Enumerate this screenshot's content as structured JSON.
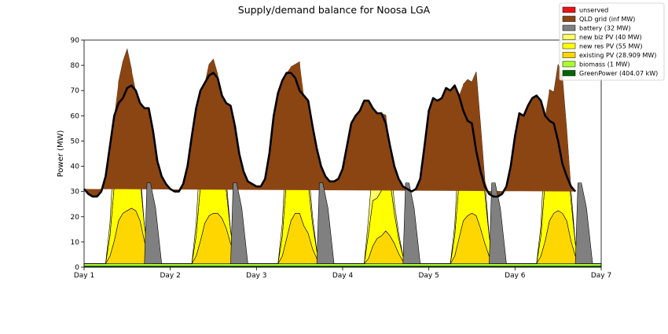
{
  "chart_data": {
    "type": "area",
    "title": "Supply/demand balance for Noosa LGA",
    "xlabel": "",
    "ylabel": "Power (MW)",
    "ylim": [
      0,
      90
    ],
    "yticks": [
      0,
      10,
      20,
      30,
      40,
      50,
      60,
      70,
      80,
      90
    ],
    "xlim": [
      1,
      7
    ],
    "xticks": [
      1,
      2,
      3,
      4,
      5,
      6,
      7
    ],
    "xtick_labels": [
      "Day 1",
      "Day 2",
      "Day 3",
      "Day 4",
      "Day 5",
      "Day 6",
      "Day 7"
    ],
    "grid": false,
    "legend_position": "top-right",
    "stack_order": [
      "GreenPower (404.07 kW)",
      "biomass (1 MW)",
      "existing PV (28.909 MW)",
      "new res PV (55 MW)",
      "new biz PV (40 MW)",
      "battery (32 MW)",
      "QLD grid (inf MW)",
      "unserved"
    ],
    "legend": [
      {
        "name": "unserved",
        "color": "#e8141b"
      },
      {
        "name": "QLD grid (inf MW)",
        "color": "#8b4513"
      },
      {
        "name": "battery (32 MW)",
        "color": "#808080"
      },
      {
        "name": "new biz PV (40 MW)",
        "color": "#ffff66"
      },
      {
        "name": "new res PV (55 MW)",
        "color": "#ffff00"
      },
      {
        "name": "existing PV (28.909 MW)",
        "color": "#ffd700"
      },
      {
        "name": "biomass (1 MW)",
        "color": "#adff2f"
      },
      {
        "name": "GreenPower (404.07 kW)",
        "color": "#006400"
      }
    ],
    "x": [
      1.0,
      1.05,
      1.1,
      1.15,
      1.2,
      1.25,
      1.3,
      1.35,
      1.4,
      1.45,
      1.5,
      1.55,
      1.6,
      1.65,
      1.7,
      1.75,
      1.8,
      1.85,
      1.9,
      1.95,
      2.0,
      2.05,
      2.1,
      2.15,
      2.2,
      2.25,
      2.3,
      2.35,
      2.4,
      2.45,
      2.5,
      2.55,
      2.6,
      2.65,
      2.7,
      2.75,
      2.8,
      2.85,
      2.9,
      2.95,
      3.0,
      3.05,
      3.1,
      3.15,
      3.2,
      3.25,
      3.3,
      3.35,
      3.4,
      3.45,
      3.5,
      3.55,
      3.6,
      3.65,
      3.7,
      3.75,
      3.8,
      3.85,
      3.9,
      3.95,
      4.0,
      4.05,
      4.1,
      4.15,
      4.2,
      4.25,
      4.3,
      4.35,
      4.4,
      4.45,
      4.5,
      4.55,
      4.6,
      4.65,
      4.7,
      4.75,
      4.8,
      4.85,
      4.9,
      4.95,
      5.0,
      5.05,
      5.1,
      5.15,
      5.2,
      5.25,
      5.3,
      5.35,
      5.4,
      5.45,
      5.5,
      5.55,
      5.6,
      5.65,
      5.7,
      5.75,
      5.8,
      5.85,
      5.9,
      5.95,
      6.0,
      6.05,
      6.1,
      6.15,
      6.2,
      6.25,
      6.3,
      6.35,
      6.4,
      6.45,
      6.5,
      6.55,
      6.6,
      6.65,
      6.7,
      6.75,
      6.8,
      6.85,
      6.9,
      6.95,
      7.0
    ],
    "demand": [
      31.0,
      29.0,
      28.0,
      28.0,
      30.0,
      36.0,
      48.0,
      60.0,
      65.0,
      67.0,
      71.0,
      72.0,
      70.0,
      65.0,
      63.0,
      63.0,
      54.0,
      42.0,
      36.0,
      33.0,
      31.0,
      30.0,
      30.0,
      33.0,
      40.0,
      52.0,
      63.0,
      70.0,
      73.0,
      76.0,
      77.0,
      75.0,
      68.0,
      65.0,
      64.0,
      56.0,
      45.0,
      38.0,
      34.0,
      33.0,
      32.0,
      32.0,
      35.0,
      45.0,
      60.0,
      69.0,
      74.0,
      77.0,
      77.0,
      75.0,
      70.0,
      68.0,
      66.0,
      56.0,
      47.0,
      40.0,
      36.0,
      34.0,
      34.0,
      35.0,
      39.0,
      48.0,
      57.0,
      60.0,
      62.0,
      66.0,
      66.0,
      63.0,
      61.0,
      61.0,
      57.0,
      48.0,
      40.0,
      35.0,
      32.0,
      31.0,
      30.0,
      31.0,
      35.0,
      48.0,
      62.0,
      67.0,
      66.0,
      67.0,
      71.0,
      70.0,
      72.0,
      68.0,
      62.0,
      58.0,
      57.0,
      46.0,
      38.0,
      32.0,
      29.0,
      28.0,
      28.0,
      29.0,
      32.0,
      40.0,
      52.0,
      61.0,
      60.0,
      64.0,
      67.0,
      68.0,
      66.0,
      60.0,
      58.0,
      57.0,
      50.0,
      41.0,
      36.0,
      32.0,
      30.0
    ],
    "series": [
      {
        "name": "GreenPower (404.07 kW)",
        "values": [
          0.4,
          0.4,
          0.4,
          0.4,
          0.4,
          0.4,
          0.4,
          0.4,
          0.4,
          0.4,
          0.4,
          0.4,
          0.4,
          0.4,
          0.4,
          0.4,
          0.4,
          0.4,
          0.4,
          0.4,
          0.4,
          0.4,
          0.4,
          0.4,
          0.4,
          0.4,
          0.4,
          0.4,
          0.4,
          0.4,
          0.4,
          0.4,
          0.4,
          0.4,
          0.4,
          0.4,
          0.4,
          0.4,
          0.4,
          0.4,
          0.4,
          0.4,
          0.4,
          0.4,
          0.4,
          0.4,
          0.4,
          0.4,
          0.4,
          0.4,
          0.4,
          0.4,
          0.4,
          0.4,
          0.4,
          0.4,
          0.4,
          0.4,
          0.4,
          0.4,
          0.4,
          0.4,
          0.4,
          0.4,
          0.4,
          0.4,
          0.4,
          0.4,
          0.4,
          0.4,
          0.4,
          0.4,
          0.4,
          0.4,
          0.4,
          0.4,
          0.4,
          0.4,
          0.4,
          0.4,
          0.4,
          0.4,
          0.4,
          0.4,
          0.4,
          0.4,
          0.4,
          0.4,
          0.4,
          0.4,
          0.4,
          0.4,
          0.4,
          0.4,
          0.4,
          0.4,
          0.4,
          0.4,
          0.4,
          0.4,
          0.4,
          0.4,
          0.4,
          0.4,
          0.4,
          0.4,
          0.4,
          0.4,
          0.4,
          0.4,
          0.4,
          0.4,
          0.4,
          0.4,
          0.4,
          0.4,
          0.4,
          0.4,
          0.4,
          0.4,
          0.4
        ]
      },
      {
        "name": "biomass (1 MW)",
        "values": [
          1.0,
          1.0,
          1.0,
          1.0,
          1.0,
          1.0,
          1.0,
          1.0,
          1.0,
          1.0,
          1.0,
          1.0,
          1.0,
          1.0,
          1.0,
          1.0,
          1.0,
          1.0,
          1.0,
          1.0,
          1.0,
          1.0,
          1.0,
          1.0,
          1.0,
          1.0,
          1.0,
          1.0,
          1.0,
          1.0,
          1.0,
          1.0,
          1.0,
          1.0,
          1.0,
          1.0,
          1.0,
          1.0,
          1.0,
          1.0,
          1.0,
          1.0,
          1.0,
          1.0,
          1.0,
          1.0,
          1.0,
          1.0,
          1.0,
          1.0,
          1.0,
          1.0,
          1.0,
          1.0,
          1.0,
          1.0,
          1.0,
          1.0,
          1.0,
          1.0,
          1.0,
          1.0,
          1.0,
          1.0,
          1.0,
          1.0,
          1.0,
          1.0,
          1.0,
          1.0,
          1.0,
          1.0,
          1.0,
          1.0,
          1.0,
          1.0,
          1.0,
          1.0,
          1.0,
          1.0,
          1.0,
          1.0,
          1.0,
          1.0,
          1.0,
          1.0,
          1.0,
          1.0,
          1.0,
          1.0,
          1.0,
          1.0,
          1.0,
          1.0,
          1.0,
          1.0,
          1.0,
          1.0,
          1.0,
          1.0,
          1.0,
          1.0,
          1.0,
          1.0,
          1.0,
          1.0,
          1.0,
          1.0,
          1.0,
          1.0,
          1.0,
          1.0,
          1.0,
          1.0,
          1.0,
          1.0,
          1.0,
          1.0,
          1.0,
          1.0,
          1.0
        ]
      },
      {
        "name": "existing PV (28.909 MW)",
        "values": [
          0.0,
          0.0,
          0.0,
          0.0,
          0.0,
          0.0,
          3.0,
          9.0,
          17.0,
          20.0,
          21.0,
          22.0,
          21.0,
          17.0,
          9.0,
          3.0,
          0.0,
          0.0,
          0.0,
          0.0,
          0.0,
          0.0,
          0.0,
          0.0,
          0.0,
          0.0,
          3.0,
          9.0,
          16.0,
          19.0,
          20.0,
          20.0,
          18.0,
          14.0,
          8.0,
          3.0,
          0.0,
          0.0,
          0.0,
          0.0,
          0.0,
          0.0,
          0.0,
          0.0,
          0.0,
          0.0,
          3.0,
          10.0,
          17.0,
          20.0,
          20.0,
          15.0,
          12.0,
          6.0,
          2.0,
          0.0,
          0.0,
          0.0,
          0.0,
          0.0,
          0.0,
          0.0,
          0.0,
          0.0,
          0.0,
          0.0,
          2.0,
          7.0,
          10.0,
          11.0,
          13.0,
          11.0,
          8.0,
          4.0,
          1.0,
          0.0,
          0.0,
          0.0,
          0.0,
          0.0,
          0.0,
          0.0,
          0.0,
          0.0,
          0.0,
          0.0,
          3.0,
          10.0,
          17.0,
          19.0,
          20.0,
          19.0,
          14.0,
          8.0,
          3.0,
          0.0,
          0.0,
          0.0,
          0.0,
          0.0,
          0.0,
          0.0,
          0.0,
          0.0,
          0.0,
          0.0,
          3.0,
          9.0,
          17.0,
          20.0,
          21.0,
          20.0,
          17.0,
          9.0,
          3.0,
          0.0,
          0.0,
          0.0,
          0.0,
          0.0,
          0.0
        ]
      },
      {
        "name": "new res PV (55 MW)",
        "values": [
          0.0,
          0.0,
          0.0,
          0.0,
          0.0,
          0.0,
          8.0,
          22.0,
          35.0,
          40.0,
          44.0,
          40.0,
          30.0,
          17.0,
          6.0,
          0.0,
          0.0,
          0.0,
          0.0,
          0.0,
          0.0,
          0.0,
          0.0,
          0.0,
          0.0,
          0.0,
          8.0,
          22.0,
          34.0,
          38.0,
          38.0,
          36.0,
          28.0,
          15.0,
          5.0,
          0.0,
          0.0,
          0.0,
          0.0,
          0.0,
          0.0,
          0.0,
          0.0,
          0.0,
          0.0,
          0.0,
          8.0,
          24.0,
          40.0,
          36.0,
          38.0,
          25.0,
          20.0,
          10.0,
          3.0,
          0.0,
          0.0,
          0.0,
          0.0,
          0.0,
          0.0,
          0.0,
          0.0,
          0.0,
          0.0,
          0.0,
          10.0,
          18.0,
          16.0,
          18.0,
          28.0,
          22.0,
          12.0,
          6.0,
          2.0,
          0.0,
          0.0,
          0.0,
          0.0,
          0.0,
          0.0,
          0.0,
          0.0,
          0.0,
          0.0,
          0.0,
          8.0,
          22.0,
          34.0,
          33.0,
          32.0,
          39.0,
          31.0,
          20.0,
          8.0,
          0.0,
          0.0,
          0.0,
          0.0,
          0.0,
          0.0,
          0.0,
          0.0,
          0.0,
          0.0,
          0.0,
          8.0,
          24.0,
          36.0,
          28.0,
          38.0,
          38.0,
          28.0,
          16.0,
          5.0,
          0.0,
          0.0,
          0.0,
          0.0,
          0.0,
          0.0
        ]
      },
      {
        "name": "new biz PV (40 MW)",
        "values": [
          0.0,
          0.0,
          0.0,
          0.0,
          0.0,
          0.0,
          5.0,
          15.0,
          20.0,
          20.0,
          20.0,
          15.0,
          7.0,
          3.0,
          0.0,
          0.0,
          0.0,
          0.0,
          0.0,
          0.0,
          0.0,
          0.0,
          0.0,
          0.0,
          0.0,
          0.0,
          5.0,
          15.0,
          21.0,
          22.0,
          23.0,
          19.0,
          10.0,
          4.0,
          0.0,
          0.0,
          0.0,
          0.0,
          0.0,
          0.0,
          0.0,
          0.0,
          0.0,
          0.0,
          0.0,
          0.0,
          5.0,
          15.0,
          21.0,
          23.0,
          22.0,
          16.0,
          7.0,
          3.0,
          0.0,
          0.0,
          0.0,
          0.0,
          0.0,
          0.0,
          0.0,
          0.0,
          0.0,
          0.0,
          0.0,
          0.0,
          6.0,
          15.0,
          10.0,
          12.0,
          18.0,
          10.0,
          4.0,
          2.0,
          0.0,
          0.0,
          0.0,
          0.0,
          0.0,
          0.0,
          0.0,
          0.0,
          0.0,
          0.0,
          0.0,
          0.0,
          4.0,
          15.0,
          20.0,
          21.0,
          20.0,
          18.0,
          10.0,
          5.0,
          0.0,
          0.0,
          0.0,
          0.0,
          0.0,
          0.0,
          0.0,
          0.0,
          0.0,
          0.0,
          0.0,
          0.0,
          4.0,
          17.0,
          16.0,
          20.0,
          20.0,
          16.0,
          8.0,
          4.0,
          0.0,
          0.0,
          0.0,
          0.0,
          0.0,
          0.0,
          0.0
        ]
      },
      {
        "name": "battery (32 MW)",
        "values": [
          0.0,
          0.0,
          0.0,
          0.0,
          0.0,
          0.0,
          0.0,
          0.0,
          0.0,
          0.0,
          0.0,
          0.0,
          0.0,
          0.0,
          0.0,
          0.0,
          0.0,
          0.0,
          0.0,
          0.0,
          0.0,
          0.0,
          0.0,
          0.0,
          0.0,
          0.0,
          0.0,
          0.0,
          0.0,
          0.0,
          0.0,
          0.0,
          0.0,
          0.0,
          0.0,
          0.0,
          0.0,
          0.0,
          0.0,
          0.0,
          0.0,
          0.0,
          0.0,
          0.0,
          0.0,
          0.0,
          0.0,
          0.0,
          0.0,
          0.0,
          0.0,
          0.0,
          0.0,
          0.0,
          0.0,
          0.0,
          0.0,
          0.0,
          0.0,
          0.0,
          0.0,
          0.0,
          0.0,
          0.0,
          0.0,
          0.0,
          0.0,
          0.0,
          0.0,
          0.0,
          0.0,
          0.0,
          0.0,
          0.0,
          0.0,
          0.0,
          0.0,
          0.0,
          0.0,
          0.0,
          0.0,
          0.0,
          0.0,
          0.0,
          0.0,
          0.0,
          0.0,
          0.0,
          0.0,
          0.0,
          0.0,
          0.0,
          0.0,
          0.0,
          0.0,
          0.0,
          0.0,
          0.0,
          0.0,
          0.0,
          0.0,
          0.0,
          0.0,
          0.0,
          0.0,
          0.0,
          0.0,
          0.0,
          0.0,
          0.0,
          0.0,
          0.0,
          0.0,
          0.0,
          0.0,
          0.0,
          0.0,
          0.0,
          0.0,
          0.0,
          0.0
        ]
      }
    ],
    "battery_discharge": [
      {
        "start": 1.7,
        "peak": 1.75,
        "end": 1.9,
        "values": [
          0,
          32.0,
          32.0,
          22.0,
          0
        ]
      },
      {
        "start": 2.7,
        "peak": 2.75,
        "end": 2.9,
        "values": [
          0,
          32.0,
          32.0,
          22.0,
          0
        ]
      },
      {
        "start": 3.7,
        "peak": 3.75,
        "end": 3.9,
        "values": [
          0,
          32.0,
          32.0,
          22.0,
          0
        ]
      },
      {
        "start": 4.7,
        "peak": 4.75,
        "end": 4.9,
        "values": [
          0,
          32.0,
          32.0,
          22.0,
          0
        ]
      },
      {
        "start": 5.7,
        "peak": 5.75,
        "end": 5.9,
        "values": [
          0,
          32.0,
          32.0,
          22.0,
          0
        ]
      },
      {
        "start": 6.7,
        "peak": 6.75,
        "end": 6.9,
        "values": [
          0,
          32.0,
          32.0,
          22.0,
          0
        ]
      }
    ]
  }
}
